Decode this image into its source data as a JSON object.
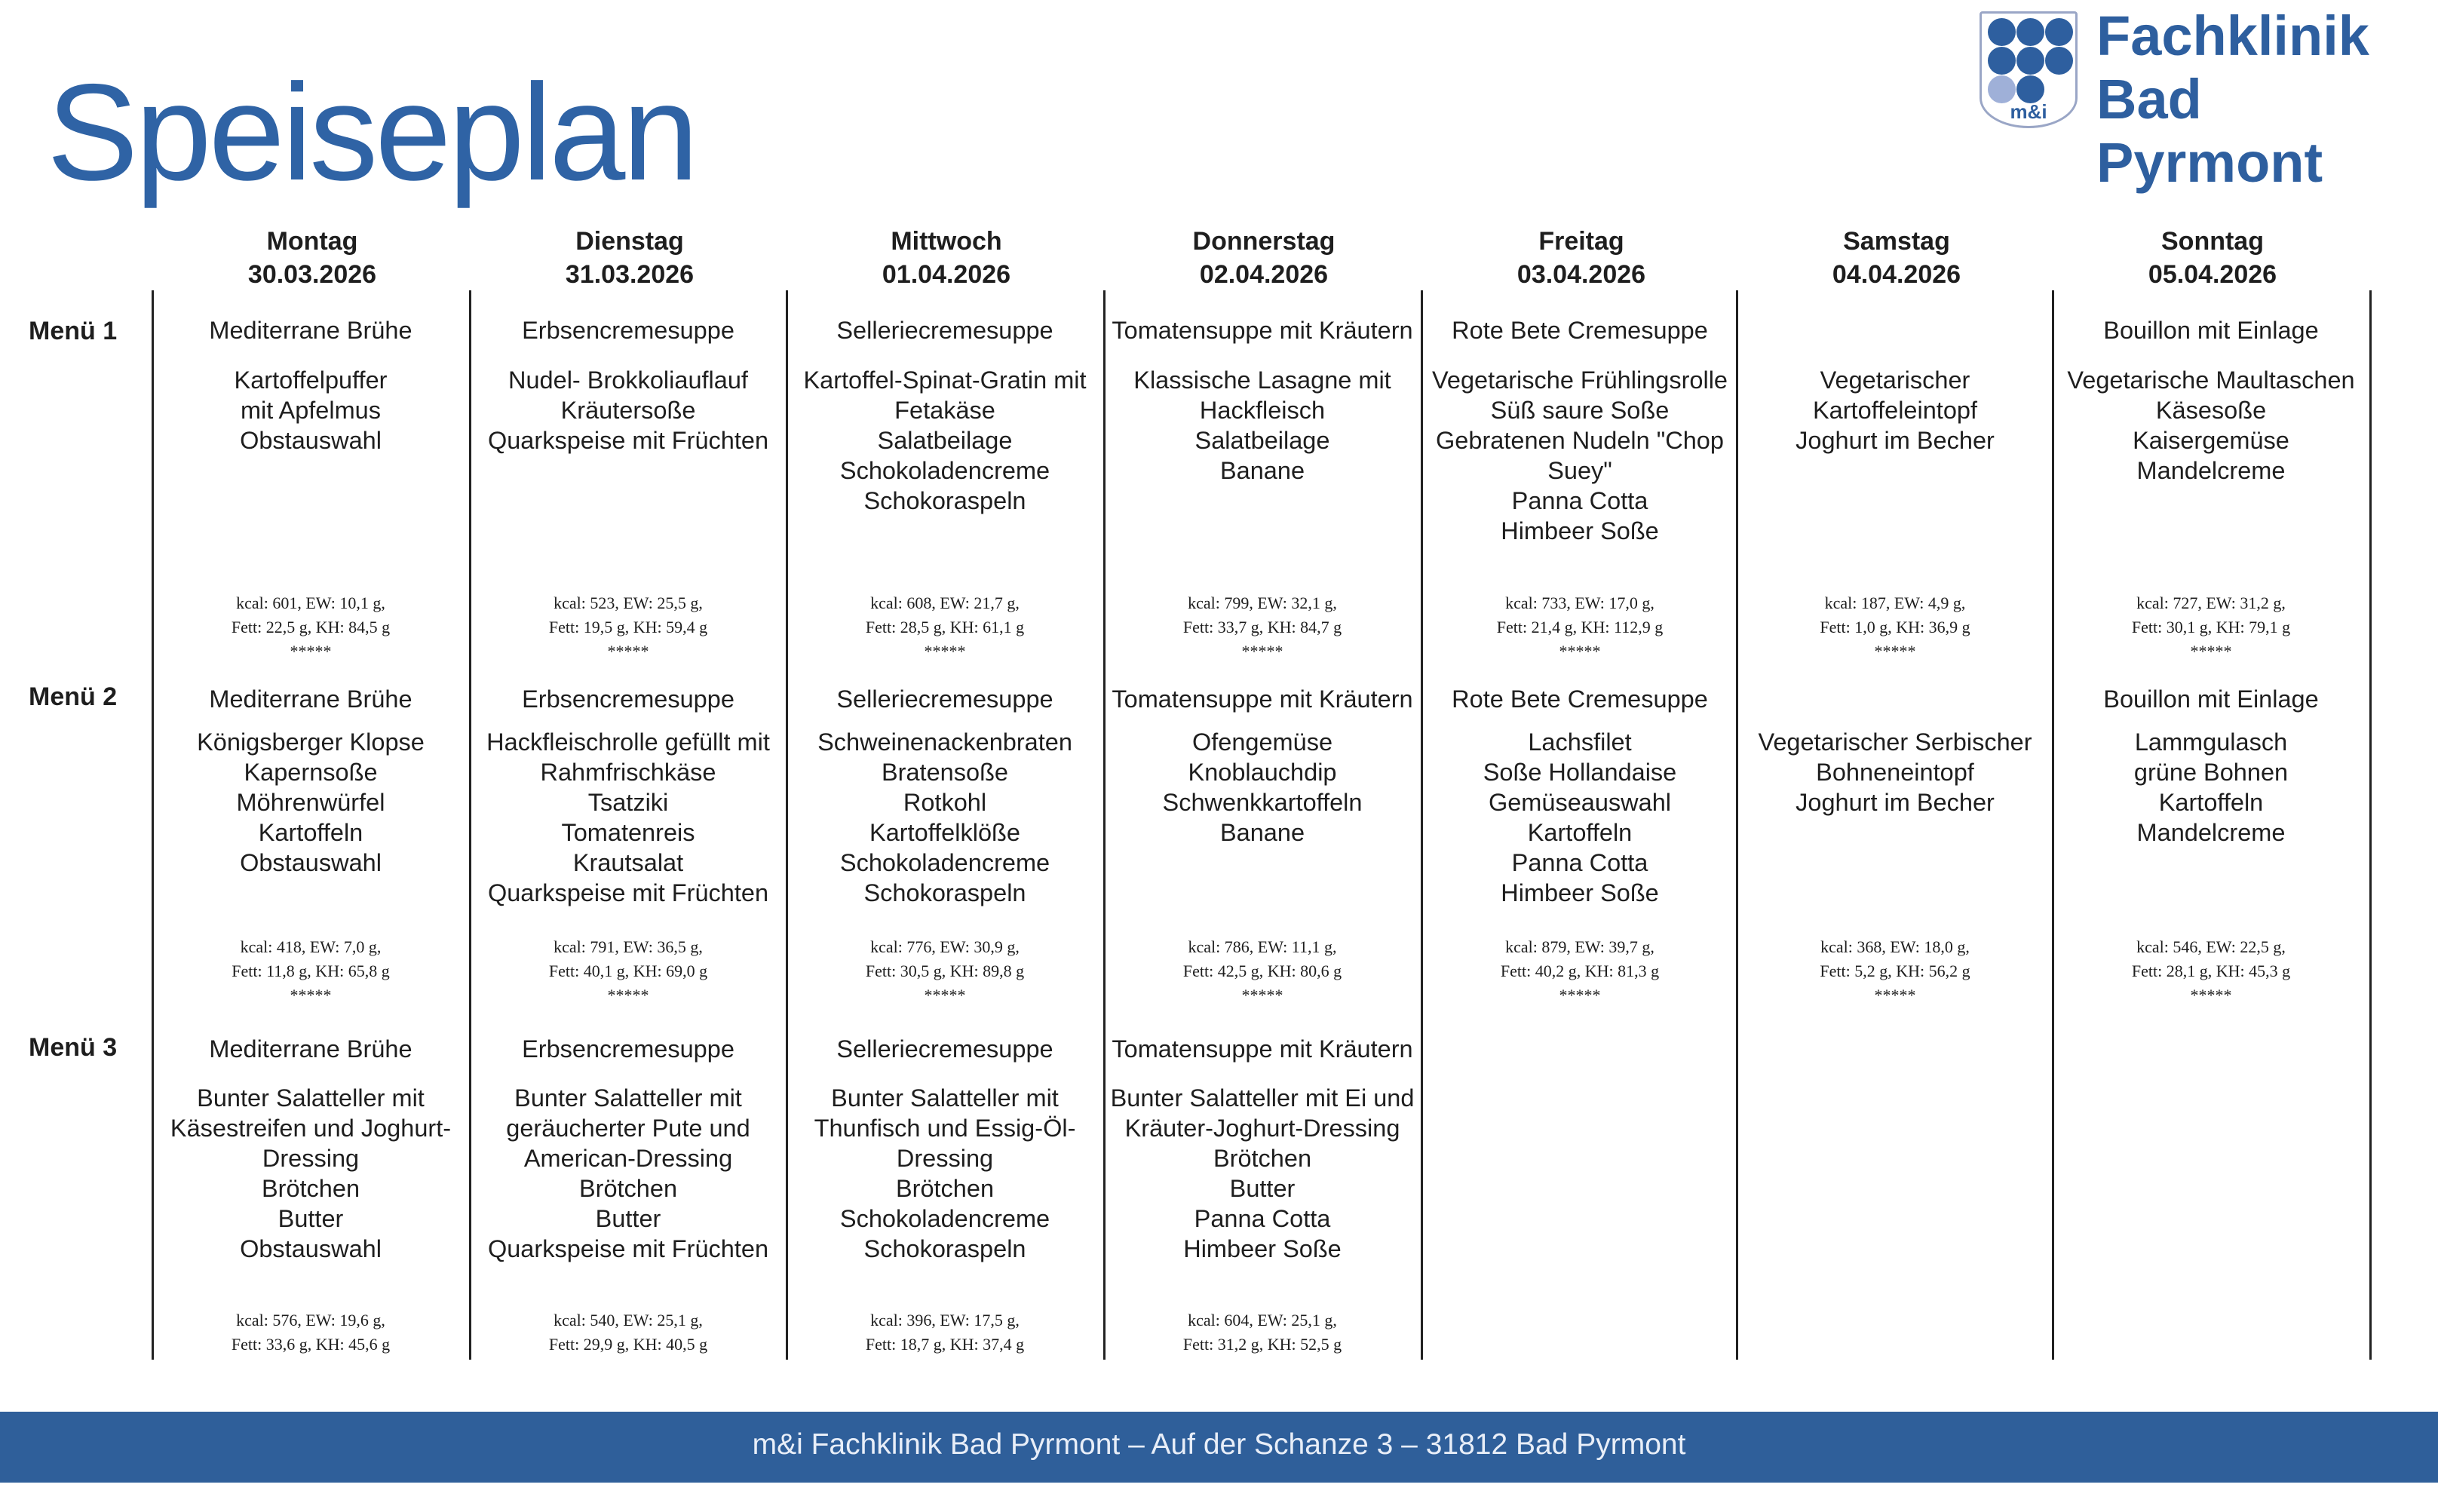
{
  "header": {
    "title": "Speiseplan",
    "logo": {
      "line1": "Fachklinik",
      "line2": "Bad Pyrmont",
      "badge": "m&i",
      "brand_color": "#2e5f9f"
    }
  },
  "menu_labels": [
    "Menü 1",
    "Menü 2",
    "Menü 3"
  ],
  "days": [
    {
      "name": "Montag",
      "date": "30.03.2026",
      "menus": [
        {
          "soup": "Mediterrane Brühe",
          "dishes": [
            "Kartoffelpuffer",
            "mit Apfelmus",
            "Obstauswahl"
          ],
          "nutrition": [
            "kcal: 601, EW: 10,1 g,",
            "Fett: 22,5 g, KH: 84,5 g"
          ],
          "stars": "*****"
        },
        {
          "soup": "Mediterrane Brühe",
          "dishes": [
            "Königsberger Klopse",
            "Kapernsoße",
            "Möhrenwürfel",
            "Kartoffeln",
            "Obstauswahl"
          ],
          "nutrition": [
            "kcal: 418, EW: 7,0 g,",
            "Fett: 11,8 g, KH: 65,8 g"
          ],
          "stars": "*****"
        },
        {
          "soup": "Mediterrane Brühe",
          "dishes": [
            "Bunter Salatteller mit",
            "Käsestreifen und Joghurt-",
            "Dressing",
            "Brötchen",
            "Butter",
            "Obstauswahl"
          ],
          "nutrition": [
            "kcal: 576, EW: 19,6 g,",
            "Fett: 33,6 g, KH: 45,6 g"
          ],
          "stars": ""
        }
      ]
    },
    {
      "name": "Dienstag",
      "date": "31.03.2026",
      "menus": [
        {
          "soup": "Erbsencremesuppe",
          "dishes": [
            "Nudel- Brokkoliauflauf",
            "Kräutersoße",
            "Quarkspeise mit Früchten"
          ],
          "nutrition": [
            "kcal: 523, EW: 25,5 g,",
            "Fett: 19,5 g, KH: 59,4 g"
          ],
          "stars": "*****"
        },
        {
          "soup": "Erbsencremesuppe",
          "dishes": [
            "Hackfleischrolle gefüllt mit",
            "Rahmfrischkäse",
            "Tsatziki",
            "Tomatenreis",
            "Krautsalat",
            "Quarkspeise mit Früchten"
          ],
          "nutrition": [
            "kcal: 791, EW: 36,5 g,",
            "Fett: 40,1 g, KH: 69,0 g"
          ],
          "stars": "*****"
        },
        {
          "soup": "Erbsencremesuppe",
          "dishes": [
            "Bunter Salatteller mit",
            "geräucherter Pute und",
            "American-Dressing",
            "Brötchen",
            "Butter",
            "Quarkspeise mit Früchten"
          ],
          "nutrition": [
            "kcal: 540, EW: 25,1 g,",
            "Fett: 29,9 g, KH: 40,5 g"
          ],
          "stars": ""
        }
      ]
    },
    {
      "name": "Mittwoch",
      "date": "01.04.2026",
      "menus": [
        {
          "soup": "Selleriecremesuppe",
          "dishes": [
            "Kartoffel-Spinat-Gratin mit",
            "Fetakäse",
            "Salatbeilage",
            "Schokoladencreme",
            "Schokoraspeln"
          ],
          "nutrition": [
            "kcal: 608, EW: 21,7 g,",
            "Fett: 28,5 g, KH: 61,1 g"
          ],
          "stars": "*****"
        },
        {
          "soup": "Selleriecremesuppe",
          "dishes": [
            "Schweinenackenbraten",
            "Bratensoße",
            "Rotkohl",
            "Kartoffelklöße",
            "Schokoladencreme",
            "Schokoraspeln"
          ],
          "nutrition": [
            "kcal: 776, EW: 30,9 g,",
            "Fett: 30,5 g, KH: 89,8 g"
          ],
          "stars": "*****"
        },
        {
          "soup": "Selleriecremesuppe",
          "dishes": [
            "Bunter Salatteller mit",
            "Thunfisch und Essig-Öl-",
            "Dressing",
            "Brötchen",
            "Schokoladencreme",
            "Schokoraspeln"
          ],
          "nutrition": [
            "kcal: 396, EW: 17,5 g,",
            "Fett: 18,7 g, KH: 37,4 g"
          ],
          "stars": ""
        }
      ]
    },
    {
      "name": "Donnerstag",
      "date": "02.04.2026",
      "menus": [
        {
          "soup": "Tomatensuppe mit Kräutern",
          "dishes": [
            "Klassische Lasagne mit",
            "Hackfleisch",
            "Salatbeilage",
            "Banane"
          ],
          "nutrition": [
            "kcal: 799, EW: 32,1 g,",
            "Fett: 33,7 g, KH: 84,7 g"
          ],
          "stars": "*****"
        },
        {
          "soup": "Tomatensuppe mit Kräutern",
          "dishes": [
            "Ofengemüse",
            "Knoblauchdip",
            "Schwenkkartoffeln",
            "Banane"
          ],
          "nutrition": [
            "kcal: 786, EW: 11,1 g,",
            "Fett: 42,5 g, KH: 80,6 g"
          ],
          "stars": "*****"
        },
        {
          "soup": "Tomatensuppe mit Kräutern",
          "dishes": [
            "Bunter Salatteller mit Ei und",
            "Kräuter-Joghurt-Dressing",
            "Brötchen",
            "Butter",
            "Panna Cotta",
            "Himbeer Soße"
          ],
          "nutrition": [
            "kcal: 604, EW: 25,1 g,",
            "Fett: 31,2 g, KH: 52,5 g"
          ],
          "stars": ""
        }
      ]
    },
    {
      "name": "Freitag",
      "date": "03.04.2026",
      "menus": [
        {
          "soup": "Rote Bete Cremesuppe",
          "dishes": [
            "Vegetarische Frühlingsrolle",
            "Süß saure Soße",
            "Gebratenen Nudeln \"Chop",
            "Suey\"",
            "Panna Cotta",
            "Himbeer Soße"
          ],
          "nutrition": [
            "kcal: 733, EW: 17,0 g,",
            "Fett: 21,4 g, KH: 112,9 g"
          ],
          "stars": "*****"
        },
        {
          "soup": "Rote Bete Cremesuppe",
          "dishes": [
            "Lachsfilet",
            "Soße Hollandaise",
            "Gemüseauswahl",
            "Kartoffeln",
            "Panna Cotta",
            "Himbeer Soße"
          ],
          "nutrition": [
            "kcal: 879, EW: 39,7 g,",
            "Fett: 40,2 g, KH: 81,3 g"
          ],
          "stars": "*****"
        },
        {
          "soup": "",
          "dishes": [],
          "nutrition": [],
          "stars": ""
        }
      ]
    },
    {
      "name": "Samstag",
      "date": "04.04.2026",
      "menus": [
        {
          "soup": "",
          "dishes": [
            "Vegetarischer",
            "Kartoffeleintopf",
            "Joghurt im Becher"
          ],
          "nutrition": [
            "kcal: 187, EW: 4,9 g,",
            "Fett: 1,0 g, KH: 36,9 g"
          ],
          "stars": "*****"
        },
        {
          "soup": "",
          "dishes": [
            "Vegetarischer Serbischer",
            "Bohneneintopf",
            "Joghurt im Becher"
          ],
          "nutrition": [
            "kcal: 368, EW: 18,0 g,",
            "Fett: 5,2 g, KH: 56,2 g"
          ],
          "stars": "*****"
        },
        {
          "soup": "",
          "dishes": [],
          "nutrition": [],
          "stars": ""
        }
      ]
    },
    {
      "name": "Sonntag",
      "date": "05.04.2026",
      "menus": [
        {
          "soup": "Bouillon mit Einlage",
          "dishes": [
            "Vegetarische Maultaschen",
            "Käsesoße",
            "Kaisergemüse",
            "Mandelcreme"
          ],
          "nutrition": [
            "kcal: 727, EW: 31,2 g,",
            "Fett: 30,1 g, KH: 79,1 g"
          ],
          "stars": "*****"
        },
        {
          "soup": "Bouillon mit Einlage",
          "dishes": [
            "Lammgulasch",
            "grüne Bohnen",
            "Kartoffeln",
            "Mandelcreme"
          ],
          "nutrition": [
            "kcal: 546, EW: 22,5 g,",
            "Fett: 28,1 g, KH: 45,3 g"
          ],
          "stars": "*****"
        },
        {
          "soup": "",
          "dishes": [],
          "nutrition": [],
          "stars": ""
        }
      ]
    }
  ],
  "footer": {
    "text": "m&i Fachklinik Bad Pyrmont  – Auf der Schanze 3 – 31812 Bad Pyrmont",
    "color": "#2f5f9a"
  }
}
